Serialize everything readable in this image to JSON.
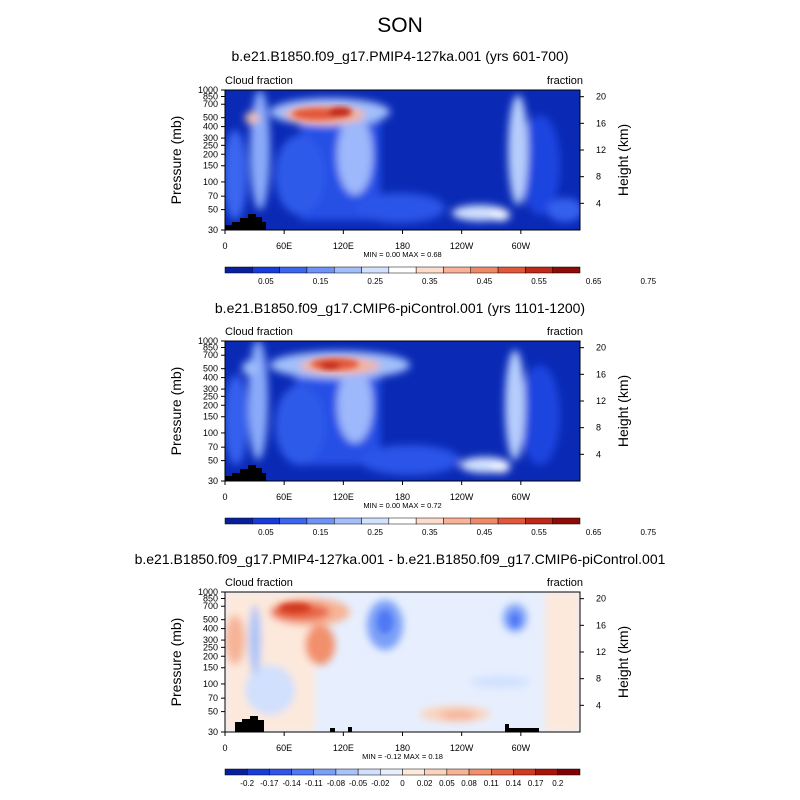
{
  "title": "SON",
  "panels": [
    {
      "title": "b.e21.B1850.f09_g17.PMIP4-127ka.001 (yrs 601-700)",
      "var_label": "Cloud fraction",
      "unit_label": "fraction",
      "stats": "MIN =   0.00  MAX =   0.68",
      "colorbar": {
        "colors": [
          "#08209f",
          "#173cdd",
          "#3a66f0",
          "#6e93f7",
          "#a2bffb",
          "#d2e1fe",
          "#ffffff",
          "#fddccb",
          "#f8b397",
          "#f08a66",
          "#e2573a",
          "#c22817",
          "#8e0c05"
        ],
        "labels": [
          "0.05",
          "0.15",
          "0.25",
          "0.35",
          "0.45",
          "0.55",
          "0.65",
          "0.75"
        ]
      }
    },
    {
      "title": "b.e21.B1850.f09_g17.CMIP6-piControl.001 (yrs 1101-1200)",
      "var_label": "Cloud fraction",
      "unit_label": "fraction",
      "stats": "MIN =   0.00  MAX =   0.72",
      "colorbar": {
        "colors": [
          "#08209f",
          "#173cdd",
          "#3a66f0",
          "#6e93f7",
          "#a2bffb",
          "#d2e1fe",
          "#ffffff",
          "#fddccb",
          "#f8b397",
          "#f08a66",
          "#e2573a",
          "#c22817",
          "#8e0c05"
        ],
        "labels": [
          "0.05",
          "0.15",
          "0.25",
          "0.35",
          "0.45",
          "0.55",
          "0.65",
          "0.75"
        ]
      }
    },
    {
      "title": "b.e21.B1850.f09_g17.PMIP4-127ka.001 - b.e21.B1850.f09_g17.CMIP6-piControl.001",
      "var_label": "Cloud fraction",
      "unit_label": "fraction",
      "stats": "MIN =  -0.12  MAX =   0.18",
      "colorbar": {
        "colors": [
          "#08209f",
          "#173cdd",
          "#2f55ec",
          "#4f78f4",
          "#7a9ff8",
          "#a7c3fb",
          "#d0e0fd",
          "#e7effe",
          "#fde9dc",
          "#fbd2bb",
          "#f7b396",
          "#f28f6c",
          "#e86544",
          "#d2391f",
          "#a81408",
          "#7d0203"
        ],
        "labels": [
          "-0.2",
          "-0.17",
          "-0.14",
          "-0.11",
          "-0.08",
          "-0.05",
          "-0.02",
          "0",
          "0.02",
          "0.05",
          "0.08",
          "0.11",
          "0.14",
          "0.17",
          "0.2"
        ]
      }
    }
  ],
  "chart_data": {
    "type": "heatmap",
    "title": "SON",
    "xlabel": "",
    "ylabel": "Pressure (mb)",
    "y2label": "Height (km)",
    "x_ticks": [
      "0",
      "60E",
      "120E",
      "180",
      "120W",
      "60W"
    ],
    "y_ticks": [
      "1000",
      "850",
      "700",
      "500",
      "400",
      "300",
      "250",
      "200",
      "150",
      "100",
      "70",
      "50",
      "30"
    ],
    "y2_ticks": [
      "4",
      "8",
      "12",
      "16",
      "20"
    ],
    "xlim": [
      0,
      360
    ],
    "ylim_mb": [
      1000,
      30
    ],
    "y_scale": "log"
  }
}
